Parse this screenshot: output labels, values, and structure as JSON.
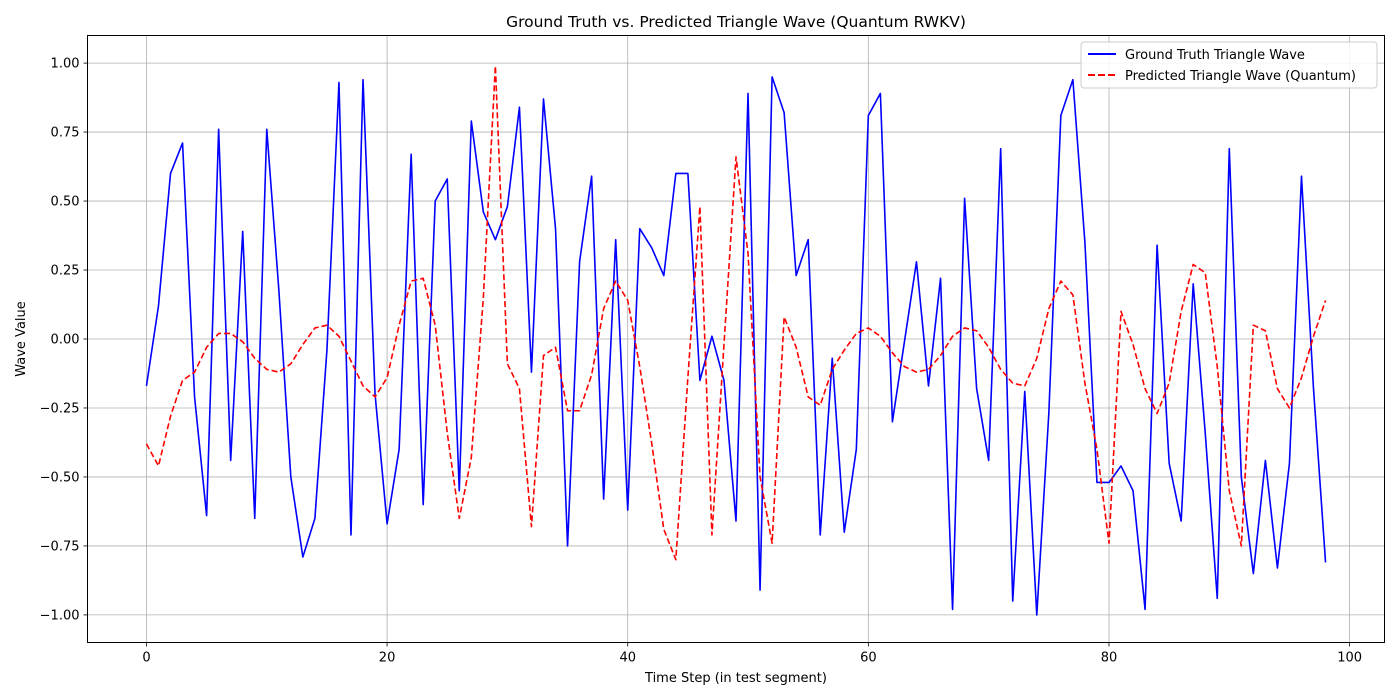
{
  "chart_data": {
    "type": "line",
    "title": "Ground Truth vs. Predicted Triangle Wave (Quantum RWKV)",
    "xlabel": "Time Step (in test segment)",
    "ylabel": "Wave Value",
    "xlim": [
      -4.9,
      102.9
    ],
    "ylim": [
      -1.1,
      1.1
    ],
    "xticks": [
      0,
      20,
      40,
      60,
      80,
      100
    ],
    "xtick_labels": [
      "0",
      "20",
      "40",
      "60",
      "80",
      "100"
    ],
    "yticks": [
      -1.0,
      -0.75,
      -0.5,
      -0.25,
      0.0,
      0.25,
      0.5,
      0.75,
      1.0
    ],
    "ytick_labels": [
      "−1.00",
      "−0.75",
      "−0.50",
      "−0.25",
      "0.00",
      "0.25",
      "0.50",
      "0.75",
      "1.00"
    ],
    "grid": true,
    "legend_position": "top-right",
    "series": [
      {
        "name": "Ground Truth Triangle Wave",
        "color": "#0000ff",
        "style": "solid",
        "values": [
          -0.17,
          0.12,
          0.6,
          0.71,
          -0.21,
          -0.64,
          0.76,
          -0.44,
          0.39,
          -0.65,
          0.76,
          0.18,
          -0.5,
          -0.79,
          -0.65,
          -0.04,
          0.93,
          -0.71,
          0.94,
          -0.2,
          -0.67,
          -0.4,
          0.67,
          -0.6,
          0.5,
          0.58,
          -0.55,
          0.79,
          0.46,
          0.36,
          0.48,
          0.84,
          -0.12,
          0.87,
          0.4,
          -0.75,
          0.28,
          0.59,
          -0.58,
          0.36,
          -0.62,
          0.4,
          0.33,
          0.23,
          0.6,
          0.6,
          -0.15,
          0.01,
          -0.15,
          -0.66,
          0.89,
          -0.91,
          0.95,
          0.82,
          0.23,
          0.36,
          -0.71,
          -0.07,
          -0.7,
          -0.4,
          0.81,
          0.89,
          -0.3,
          -0.01,
          0.28,
          -0.17,
          0.22,
          -0.98,
          0.51,
          -0.18,
          -0.44,
          0.69,
          -0.95,
          -0.19,
          -1.0,
          -0.27,
          0.81,
          0.94,
          0.35,
          -0.52,
          -0.52,
          -0.46,
          -0.55,
          -0.98,
          0.34,
          -0.45,
          -0.66,
          0.2,
          -0.34,
          -0.94,
          0.69,
          -0.5,
          -0.85,
          -0.44,
          -0.83,
          -0.45,
          0.59,
          -0.18,
          -0.81
        ]
      },
      {
        "name": "Predicted Triangle Wave (Quantum)",
        "color": "#ff0000",
        "style": "dashed",
        "values": [
          -0.38,
          -0.46,
          -0.28,
          -0.15,
          -0.12,
          -0.03,
          0.02,
          0.02,
          -0.01,
          -0.07,
          -0.11,
          -0.12,
          -0.09,
          -0.02,
          0.04,
          0.05,
          0.01,
          -0.08,
          -0.17,
          -0.21,
          -0.14,
          0.05,
          0.21,
          0.22,
          0.05,
          -0.34,
          -0.65,
          -0.43,
          0.15,
          0.99,
          -0.09,
          -0.18,
          -0.68,
          -0.06,
          -0.03,
          -0.26,
          -0.26,
          -0.13,
          0.11,
          0.21,
          0.14,
          -0.1,
          -0.38,
          -0.69,
          -0.8,
          -0.14,
          0.48,
          -0.71,
          -0.02,
          0.66,
          0.31,
          -0.5,
          -0.74,
          0.08,
          -0.03,
          -0.21,
          -0.24,
          -0.11,
          -0.04,
          0.02,
          0.04,
          0.01,
          -0.05,
          -0.1,
          -0.12,
          -0.11,
          -0.06,
          0.01,
          0.04,
          0.03,
          -0.03,
          -0.11,
          -0.16,
          -0.17,
          -0.07,
          0.11,
          0.21,
          0.16,
          -0.16,
          -0.4,
          -0.74,
          0.1,
          -0.02,
          -0.18,
          -0.27,
          -0.16,
          0.1,
          0.27,
          0.24,
          -0.1,
          -0.55,
          -0.75,
          0.05,
          0.03,
          -0.18,
          -0.25,
          -0.14,
          0.01,
          0.14
        ]
      }
    ]
  }
}
